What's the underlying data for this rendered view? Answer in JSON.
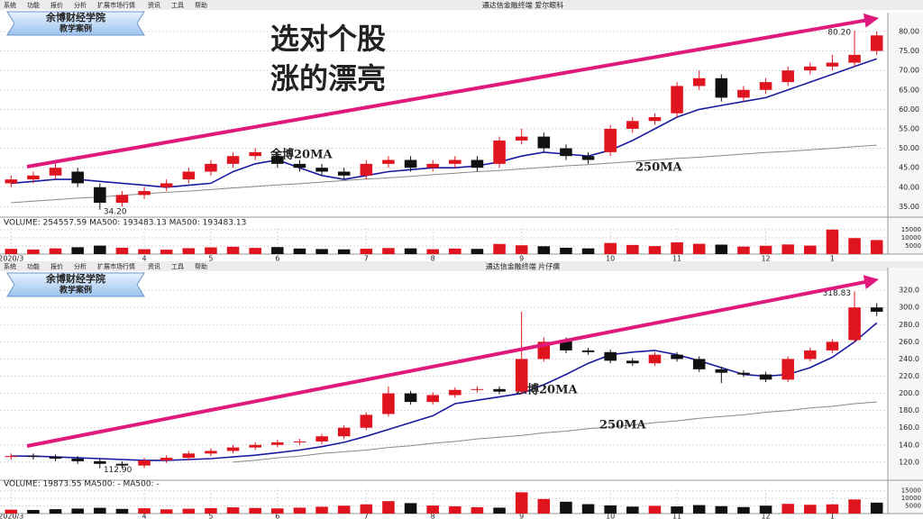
{
  "menu": [
    "系统",
    "功能",
    "报价",
    "分析",
    "扩展市场行情",
    "资讯",
    "工具",
    "帮助"
  ],
  "chart_data": [
    {
      "type": "candlestick",
      "window_title": "通达信金融终端 爱尔眼科",
      "logo": [
        "余博财经学院",
        "教学案例"
      ],
      "headline": [
        "选对个股",
        "涨的漂亮"
      ],
      "high_label": "80.20",
      "low_label": "34.20",
      "categories": [
        "2020/3",
        null,
        null,
        null,
        null,
        null,
        "4",
        null,
        null,
        "5",
        null,
        null,
        "6",
        null,
        null,
        null,
        "7",
        null,
        null,
        "8",
        null,
        null,
        null,
        "9",
        null,
        null,
        null,
        "10",
        null,
        null,
        "11",
        null,
        null,
        null,
        "12",
        null,
        null,
        "1",
        null,
        null
      ],
      "open": [
        41,
        42,
        43,
        44,
        40,
        36,
        38,
        40,
        42,
        44,
        46,
        48,
        48,
        46,
        45,
        44,
        43,
        46,
        47,
        45,
        46,
        47,
        46,
        52,
        53,
        50,
        48,
        49,
        55,
        57,
        59,
        66,
        68,
        63,
        65,
        67,
        70,
        71,
        72,
        75
      ],
      "high": [
        43,
        44,
        46,
        45,
        41,
        39,
        40,
        42,
        45,
        47,
        49,
        50,
        49,
        47,
        46,
        45,
        47,
        48,
        48,
        47,
        48,
        48,
        53,
        55,
        54,
        51,
        49,
        56,
        58,
        59,
        67,
        70,
        69,
        66,
        68,
        71,
        72,
        74,
        80.2,
        80
      ],
      "low": [
        40,
        41,
        42,
        40,
        34.2,
        35,
        37,
        39,
        41,
        43,
        45,
        47,
        45,
        44,
        43,
        42,
        42,
        45,
        44,
        44,
        45,
        44,
        45,
        51,
        49,
        47,
        46,
        48,
        54,
        56,
        58,
        65,
        62,
        62,
        64,
        66,
        69,
        70,
        71,
        74
      ],
      "close": [
        42,
        43,
        45,
        41,
        36,
        38,
        39,
        41,
        44,
        46,
        48,
        49,
        46,
        45,
        44,
        43,
        46,
        47,
        45,
        46,
        47,
        45,
        52,
        53,
        50,
        48,
        47,
        55,
        57,
        58,
        66,
        68,
        63,
        65,
        67,
        70,
        71,
        72,
        74,
        79
      ],
      "up_color": "#e0141e",
      "down_color": "#111111",
      "series": [
        {
          "name": "余博20MA",
          "color": "#1a1aa0",
          "values": [
            41,
            41.5,
            42,
            42,
            41.5,
            41,
            40.5,
            40,
            40.5,
            41,
            44,
            46,
            47,
            45,
            43,
            42,
            43,
            44,
            44.5,
            45,
            45,
            45.5,
            46.5,
            48,
            49,
            48.5,
            48,
            49.5,
            52,
            55,
            58,
            60,
            61,
            62,
            63,
            65,
            67,
            69,
            71,
            73
          ]
        },
        {
          "name": "250MA",
          "color": "#888888",
          "values": [
            36,
            36.4,
            36.8,
            37.2,
            37.5,
            37.9,
            38.3,
            38.7,
            39,
            39.4,
            39.8,
            40.2,
            40.6,
            40.9,
            41.3,
            41.7,
            42.1,
            42.4,
            42.8,
            43.2,
            43.6,
            44,
            44.3,
            44.7,
            45.1,
            45.5,
            45.8,
            46.2,
            46.6,
            47,
            47.4,
            47.7,
            48.1,
            48.5,
            48.9,
            49.2,
            49.6,
            50,
            50.4,
            50.8
          ]
        }
      ],
      "ylim": [
        33,
        83
      ],
      "grid": true,
      "yticks": [
        {
          "value": 35,
          "label": "35.00"
        },
        {
          "value": 40,
          "label": "40.00"
        },
        {
          "value": 45,
          "label": "45.00"
        },
        {
          "value": 50,
          "label": "50.00"
        },
        {
          "value": 55,
          "label": "55.00"
        },
        {
          "value": 60,
          "label": "60.00"
        },
        {
          "value": 65,
          "label": "65.00"
        },
        {
          "value": 70,
          "label": "70.00"
        },
        {
          "value": 75,
          "label": "75.00"
        },
        {
          "value": 80,
          "label": "80.00"
        }
      ],
      "volume": {
        "header": "VOLUME: 254557.59 MA500: 193483.13 MA500: 193483.13",
        "ylim": [
          0,
          16000
        ],
        "yticks": [
          5000,
          10000,
          15000
        ],
        "values": [
          3200,
          2800,
          3500,
          4200,
          5200,
          3900,
          3000,
          2700,
          3600,
          4100,
          4500,
          3800,
          4300,
          3400,
          3100,
          2900,
          3300,
          3700,
          3500,
          3000,
          3400,
          3200,
          6200,
          5400,
          4800,
          3900,
          3500,
          6800,
          5600,
          4900,
          7200,
          6300,
          5800,
          4600,
          5100,
          5900,
          5200,
          15000,
          9800,
          8600
        ]
      }
    },
    {
      "type": "candlestick",
      "window_title": "通达信金融终端 片仔癀",
      "logo": [
        "余博财经学院",
        "教学案例"
      ],
      "high_label": "318.83",
      "low_label": "112.90",
      "categories": [
        "2020/3",
        null,
        null,
        null,
        null,
        null,
        "4",
        null,
        null,
        "5",
        null,
        null,
        "6",
        null,
        null,
        null,
        "7",
        null,
        null,
        "8",
        null,
        null,
        null,
        "9",
        null,
        null,
        null,
        "10",
        null,
        null,
        "11",
        null,
        null,
        null,
        "12",
        null,
        null,
        "1",
        null,
        null
      ],
      "open": [
        126,
        127,
        126,
        124,
        121,
        118,
        116,
        122,
        125,
        130,
        133,
        137,
        140,
        143,
        144,
        150,
        160,
        176,
        200,
        190,
        198,
        204,
        205,
        202,
        240,
        262,
        250,
        248,
        238,
        235,
        245,
        240,
        228,
        224,
        222,
        216,
        240,
        250,
        262,
        300
      ],
      "high": [
        130,
        130,
        129,
        127,
        124,
        121,
        125,
        128,
        133,
        136,
        140,
        143,
        146,
        147,
        153,
        163,
        178,
        208,
        203,
        201,
        207,
        208,
        208,
        295,
        265,
        265,
        253,
        251,
        241,
        248,
        248,
        243,
        231,
        227,
        225,
        243,
        253,
        263,
        318.83,
        305
      ],
      "low": [
        123,
        123,
        121,
        118,
        112.9,
        113,
        113,
        119,
        122,
        127,
        130,
        134,
        137,
        140,
        141,
        147,
        157,
        173,
        187,
        187,
        195,
        201,
        199,
        199,
        237,
        247,
        245,
        235,
        232,
        232,
        237,
        225,
        212,
        219,
        213,
        213,
        237,
        247,
        259,
        290
      ],
      "close": [
        127,
        126,
        124,
        121,
        118,
        116,
        122,
        125,
        130,
        133,
        137,
        140,
        143,
        144,
        150,
        160,
        175,
        200,
        190,
        198,
        204,
        205,
        202,
        240,
        260,
        250,
        248,
        238,
        235,
        245,
        240,
        228,
        224,
        222,
        216,
        240,
        250,
        260,
        300,
        295
      ],
      "up_color": "#e0141e",
      "down_color": "#111111",
      "series": [
        {
          "name": "余博20MA",
          "color": "#1a1aa0",
          "values": [
            127,
            127,
            126,
            125,
            124,
            123,
            122,
            122,
            123,
            124,
            126,
            128,
            131,
            134,
            138,
            143,
            150,
            158,
            166,
            174,
            188,
            192,
            196,
            200,
            210,
            222,
            235,
            245,
            248,
            250,
            245,
            238,
            230,
            222,
            220,
            222,
            230,
            242,
            260,
            282
          ]
        },
        {
          "name": "250MA",
          "color": "#888888",
          "values": [
            null,
            null,
            null,
            null,
            null,
            null,
            null,
            null,
            null,
            null,
            120,
            122,
            125,
            127,
            130,
            132,
            134,
            137,
            139,
            142,
            144,
            147,
            149,
            151,
            154,
            156,
            159,
            161,
            163,
            166,
            168,
            171,
            173,
            175,
            178,
            180,
            183,
            185,
            188,
            190
          ]
        }
      ],
      "ylim": [
        102,
        338
      ],
      "grid": true,
      "yticks": [
        {
          "value": 120,
          "label": "120.0"
        },
        {
          "value": 140,
          "label": "140.0"
        },
        {
          "value": 160,
          "label": "160.0"
        },
        {
          "value": 180,
          "label": "180.0"
        },
        {
          "value": 200,
          "label": "200.0"
        },
        {
          "value": 220,
          "label": "220.0"
        },
        {
          "value": 240,
          "label": "240.0"
        },
        {
          "value": 260,
          "label": "260.0"
        },
        {
          "value": 280,
          "label": "280.0"
        },
        {
          "value": 300,
          "label": "300.0"
        },
        {
          "value": 320,
          "label": "320.0"
        }
      ],
      "volume": {
        "header": "VOLUME: 19873.55 MA500: - MA500: -",
        "ylim": [
          0,
          16000
        ],
        "yticks": [
          5000,
          10000,
          15000
        ],
        "values": [
          2600,
          2400,
          2900,
          3300,
          3800,
          3100,
          3500,
          2800,
          3200,
          3600,
          4100,
          3700,
          3400,
          3900,
          4500,
          5200,
          6100,
          8200,
          6900,
          5300,
          4800,
          4200,
          3900,
          14000,
          9600,
          7800,
          6200,
          5400,
          4600,
          5100,
          4700,
          5600,
          4900,
          4300,
          5200,
          6400,
          5800,
          6100,
          9300,
          7200
        ]
      }
    }
  ]
}
